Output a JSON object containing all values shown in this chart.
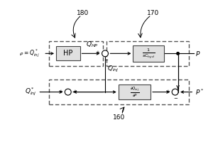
{
  "bg_color": "#ffffff",
  "fig_size": [
    3.0,
    2.0
  ],
  "dpi": 100,
  "label_180": "180",
  "label_170": "170",
  "label_160": "160",
  "text_input": "$_{iP} = Q^*_{inj}$",
  "text_QHP": "$Q_{HP}$",
  "text_Qinj": "$Q_{inj}$",
  "text_Qinj_star": "$Q^*_{inj}$",
  "text_P": "$P$",
  "text_Pstar": "$P^*$",
  "text_HP": "HP",
  "text_block1": "$\\frac{1}{sC_{hyd}}$",
  "text_block2": "$\\frac{\\partial Q_{inj}}{\\partial P}$",
  "plus": "+",
  "minus": "−"
}
